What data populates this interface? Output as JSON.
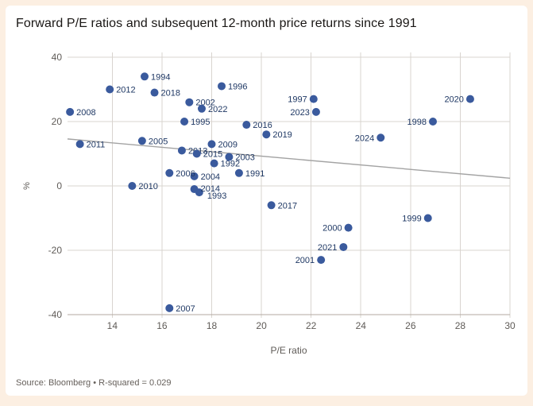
{
  "title": "Forward P/E ratios and subsequent 12-month price returns since 1991",
  "source": "Source: Bloomberg • R-squared = 0.029",
  "chart_data": {
    "type": "scatter",
    "title": "Forward P/E ratios and subsequent 12-month price returns since 1991",
    "xlabel": "P/E ratio",
    "ylabel": "%",
    "xlim": [
      12.2,
      30
    ],
    "ylim": [
      -40,
      40
    ],
    "xticks": [
      14,
      16,
      18,
      20,
      22,
      24,
      26,
      28,
      30
    ],
    "yticks": [
      40,
      20,
      0,
      -20,
      -40
    ],
    "grid": true,
    "legend": false,
    "r_squared": 0.029,
    "source": "Bloomberg",
    "points": [
      {
        "year": "1991",
        "pe": 19.1,
        "ret": 4,
        "side": "right"
      },
      {
        "year": "1992",
        "pe": 18.1,
        "ret": 7,
        "side": "right"
      },
      {
        "year": "1993",
        "pe": 17.5,
        "ret": -2,
        "side": "right",
        "ldx": 2,
        "ldy": 4
      },
      {
        "year": "1994",
        "pe": 15.3,
        "ret": 34,
        "side": "right"
      },
      {
        "year": "1995",
        "pe": 16.9,
        "ret": 20,
        "side": "right"
      },
      {
        "year": "1996",
        "pe": 18.4,
        "ret": 31,
        "side": "right"
      },
      {
        "year": "1997",
        "pe": 22.1,
        "ret": 27,
        "side": "left"
      },
      {
        "year": "1998",
        "pe": 26.9,
        "ret": 20,
        "side": "left"
      },
      {
        "year": "1999",
        "pe": 26.7,
        "ret": -10,
        "side": "left"
      },
      {
        "year": "2000",
        "pe": 23.5,
        "ret": -13,
        "side": "left"
      },
      {
        "year": "2001",
        "pe": 22.4,
        "ret": -23,
        "side": "left"
      },
      {
        "year": "2002",
        "pe": 17.1,
        "ret": 26,
        "side": "right"
      },
      {
        "year": "2003",
        "pe": 18.7,
        "ret": 9,
        "side": "right"
      },
      {
        "year": "2004",
        "pe": 17.3,
        "ret": 3,
        "side": "right"
      },
      {
        "year": "2005",
        "pe": 15.2,
        "ret": 14,
        "side": "right"
      },
      {
        "year": "2006",
        "pe": 16.3,
        "ret": 4,
        "side": "right"
      },
      {
        "year": "2007",
        "pe": 16.3,
        "ret": -38,
        "side": "right"
      },
      {
        "year": "2008",
        "pe": 12.3,
        "ret": 23,
        "side": "right"
      },
      {
        "year": "2009",
        "pe": 18.0,
        "ret": 13,
        "side": "right"
      },
      {
        "year": "2010",
        "pe": 14.8,
        "ret": 0,
        "side": "right"
      },
      {
        "year": "2011",
        "pe": 12.7,
        "ret": 13,
        "side": "right"
      },
      {
        "year": "2012",
        "pe": 13.9,
        "ret": 30,
        "side": "right"
      },
      {
        "year": "2013",
        "pe": 16.8,
        "ret": 11,
        "side": "right"
      },
      {
        "year": "2014",
        "pe": 17.3,
        "ret": -1,
        "side": "right",
        "ldy": -1
      },
      {
        "year": "2015",
        "pe": 17.4,
        "ret": 10,
        "side": "right"
      },
      {
        "year": "2016",
        "pe": 19.4,
        "ret": 19,
        "side": "right"
      },
      {
        "year": "2017",
        "pe": 20.4,
        "ret": -6,
        "side": "right"
      },
      {
        "year": "2018",
        "pe": 15.7,
        "ret": 29,
        "side": "right"
      },
      {
        "year": "2019",
        "pe": 20.2,
        "ret": 16,
        "side": "right"
      },
      {
        "year": "2020",
        "pe": 28.4,
        "ret": 27,
        "side": "left"
      },
      {
        "year": "2021",
        "pe": 23.3,
        "ret": -19,
        "side": "left"
      },
      {
        "year": "2022",
        "pe": 17.6,
        "ret": 24,
        "side": "right"
      },
      {
        "year": "2023",
        "pe": 22.2,
        "ret": 23,
        "side": "left"
      },
      {
        "year": "2024",
        "pe": 24.8,
        "ret": 15,
        "side": "left"
      }
    ],
    "trendline": {
      "x1": 12.2,
      "y1": 14.6,
      "x2": 30.0,
      "y2": 2.4
    }
  },
  "colors": {
    "dot": "#3a5a9d",
    "point_label": "#1f3864",
    "grid": "#d9d4cf",
    "axis": "#b3aaa1",
    "trend": "#a3a3a3",
    "tick_label": "#5f5b57",
    "title": "#1a1715",
    "source": "#66605b",
    "frame": "#fcefe2",
    "card": "#ffffff"
  }
}
